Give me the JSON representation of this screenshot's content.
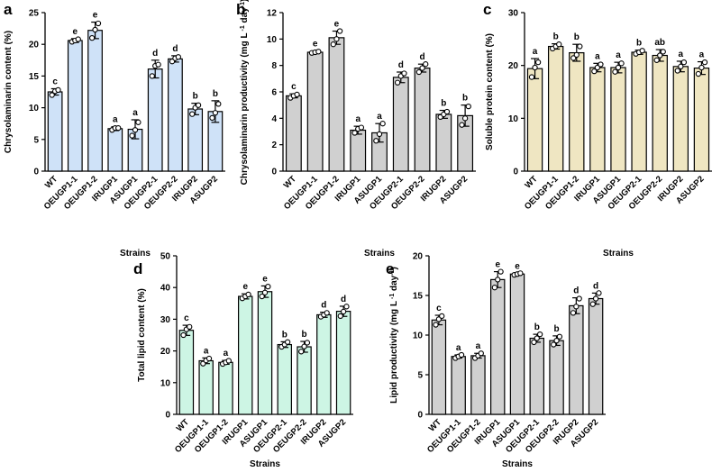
{
  "chart_data": [
    {
      "panel": "a",
      "type": "bar",
      "color": "#cfe2f8",
      "categories": [
        "WT",
        "OEUGP1-1",
        "OEUGP1-2",
        "IRUGP1",
        "ASUGP1",
        "OEUGP2-1",
        "OEUGP2-2",
        "IRUGP2",
        "ASUGP2"
      ],
      "values": [
        12.5,
        20.6,
        22.2,
        6.7,
        6.6,
        16.1,
        17.7,
        9.8,
        9.4
      ],
      "errors": [
        0.5,
        0.3,
        1.3,
        0.3,
        1.5,
        1.4,
        0.5,
        0.9,
        1.7
      ],
      "points": [
        [
          12.0,
          12.6,
          12.8
        ],
        [
          20.4,
          20.6,
          20.8
        ],
        [
          21.0,
          22.3,
          23.3
        ],
        [
          6.5,
          6.8,
          6.8
        ],
        [
          5.6,
          6.5,
          7.7
        ],
        [
          15.0,
          16.6,
          16.8
        ],
        [
          17.3,
          17.8,
          18.0
        ],
        [
          9.0,
          10.0,
          10.4
        ],
        [
          8.4,
          9.2,
          10.6
        ]
      ],
      "letters": [
        "c",
        "e",
        "e",
        "a",
        "a",
        "d",
        "d",
        "b",
        "b"
      ],
      "ylabel": "Chrysolaminarin content (%)",
      "xlabel": "Strains",
      "ylim": [
        0,
        25
      ],
      "yticks": [
        0,
        5,
        10,
        15,
        20,
        25
      ]
    },
    {
      "panel": "b",
      "type": "bar",
      "color": "#d0d0d0",
      "categories": [
        "WT",
        "OEUGP1-1",
        "OEUGP1-2",
        "IRUGP1",
        "ASUGP1",
        "OEUGP2-1",
        "OEUGP2-2",
        "IRUGP2",
        "ASUGP2"
      ],
      "values": [
        5.7,
        9.0,
        10.1,
        3.1,
        2.9,
        7.1,
        7.8,
        4.3,
        4.2
      ],
      "errors": [
        0.15,
        0.1,
        0.5,
        0.3,
        0.7,
        0.4,
        0.3,
        0.3,
        0.8
      ],
      "points": [
        [
          5.55,
          5.7,
          5.8
        ],
        [
          8.95,
          9.0,
          9.05
        ],
        [
          9.6,
          10.0,
          10.6
        ],
        [
          2.9,
          3.2,
          3.3
        ],
        [
          2.3,
          2.8,
          3.6
        ],
        [
          6.7,
          7.2,
          7.4
        ],
        [
          7.5,
          7.8,
          8.1
        ],
        [
          4.1,
          4.3,
          4.5
        ],
        [
          3.5,
          4.0,
          4.9
        ]
      ],
      "letters": [
        "c",
        "e",
        "e",
        "a",
        "a",
        "d",
        "d",
        "b",
        "b"
      ],
      "ylabel": "Chrysolaminarin productivity (mg L",
      "ylabel_sup1": "-1",
      "ylabel_mid": " day",
      "ylabel_sup2": "-1",
      "ylabel_end": ")",
      "xlabel": "Strains",
      "ylim": [
        0,
        12
      ],
      "yticks": [
        0,
        2,
        4,
        6,
        8,
        10,
        12
      ]
    },
    {
      "panel": "c",
      "type": "bar",
      "color": "#efe6c2",
      "categories": [
        "WT",
        "OEUGP1-1",
        "OEUGP1-2",
        "IRUGP1",
        "ASUGP1",
        "OEUGP2-1",
        "OEUGP2-2",
        "IRUGP2",
        "ASUGP2"
      ],
      "values": [
        19.4,
        23.6,
        22.4,
        19.6,
        19.6,
        22.5,
        21.9,
        19.8,
        19.5
      ],
      "errors": [
        1.9,
        0.5,
        1.6,
        0.8,
        1.0,
        0.4,
        1.1,
        1.0,
        1.2
      ],
      "points": [
        [
          17.8,
          19.6,
          20.6
        ],
        [
          23.2,
          23.6,
          24.0
        ],
        [
          21.4,
          22.0,
          23.6
        ],
        [
          18.9,
          19.6,
          20.2
        ],
        [
          18.8,
          19.6,
          20.4
        ],
        [
          22.2,
          22.5,
          22.8
        ],
        [
          21.0,
          21.9,
          22.6
        ],
        [
          19.0,
          19.8,
          20.6
        ],
        [
          18.4,
          19.6,
          20.6
        ]
      ],
      "letters": [
        "a",
        "b",
        "b",
        "a",
        "a",
        "b",
        "ab",
        "a",
        "a"
      ],
      "ylabel": "Soluble protein content (%)",
      "xlabel": "Strains",
      "ylim": [
        0,
        30
      ],
      "yticks": [
        0,
        10,
        20,
        30
      ]
    },
    {
      "panel": "d",
      "type": "bar",
      "color": "#cdf5e4",
      "categories": [
        "WT",
        "OEUGP1-1",
        "OEUGP1-2",
        "IRUGP1",
        "ASUGP1",
        "OEUGP2-1",
        "OEUGP2-2",
        "IRUGP2",
        "ASUGP2"
      ],
      "values": [
        26.5,
        16.9,
        16.4,
        37.2,
        38.7,
        22.0,
        21.3,
        31.4,
        32.5
      ],
      "errors": [
        1.6,
        0.9,
        0.6,
        0.8,
        1.8,
        0.9,
        1.7,
        0.8,
        1.6
      ],
      "points": [
        [
          25.0,
          26.8,
          27.6
        ],
        [
          16.0,
          17.0,
          17.6
        ],
        [
          15.9,
          16.4,
          16.9
        ],
        [
          36.6,
          37.2,
          37.8
        ],
        [
          37.2,
          38.4,
          40.3
        ],
        [
          21.3,
          22.0,
          22.8
        ],
        [
          19.8,
          21.4,
          22.6
        ],
        [
          30.8,
          31.4,
          32.0
        ],
        [
          31.0,
          32.4,
          34.0
        ]
      ],
      "letters": [
        "c",
        "a",
        "a",
        "e",
        "e",
        "b",
        "b",
        "d",
        "d"
      ],
      "ylabel": "Total lipid content (%)",
      "xlabel": "Strains",
      "ylim": [
        0,
        50
      ],
      "yticks": [
        0,
        10,
        20,
        30,
        40,
        50
      ]
    },
    {
      "panel": "e",
      "type": "bar",
      "color": "#d0d0d0",
      "categories": [
        "WT",
        "OEUGP1-1",
        "OEUGP1-2",
        "IRUGP1",
        "ASUGP1",
        "OEUGP2-1",
        "OEUGP2-2",
        "IRUGP2",
        "ASUGP2"
      ],
      "values": [
        11.9,
        7.3,
        7.4,
        17.0,
        17.7,
        9.6,
        9.3,
        13.7,
        14.6
      ],
      "errors": [
        0.6,
        0.2,
        0.3,
        1.0,
        0.1,
        0.5,
        0.6,
        1.0,
        0.7
      ],
      "points": [
        [
          11.3,
          12.0,
          12.4
        ],
        [
          7.1,
          7.3,
          7.5
        ],
        [
          7.1,
          7.4,
          7.7
        ],
        [
          16.0,
          17.0,
          18.0
        ],
        [
          17.6,
          17.7,
          17.8
        ],
        [
          9.1,
          9.6,
          10.1
        ],
        [
          8.8,
          9.3,
          9.8
        ],
        [
          12.8,
          13.6,
          14.6
        ],
        [
          13.9,
          14.6,
          15.3
        ]
      ],
      "letters": [
        "c",
        "a",
        "a",
        "e",
        "e",
        "b",
        "b",
        "d",
        "d"
      ],
      "ylabel": "Lipid productivity (mg L",
      "ylabel_sup1": "-1",
      "ylabel_mid": " day",
      "ylabel_sup2": "-1",
      "ylabel_end": ")",
      "xlabel": "Strains",
      "ylim": [
        0,
        20
      ],
      "yticks": [
        0,
        5,
        10,
        15,
        20
      ]
    }
  ]
}
